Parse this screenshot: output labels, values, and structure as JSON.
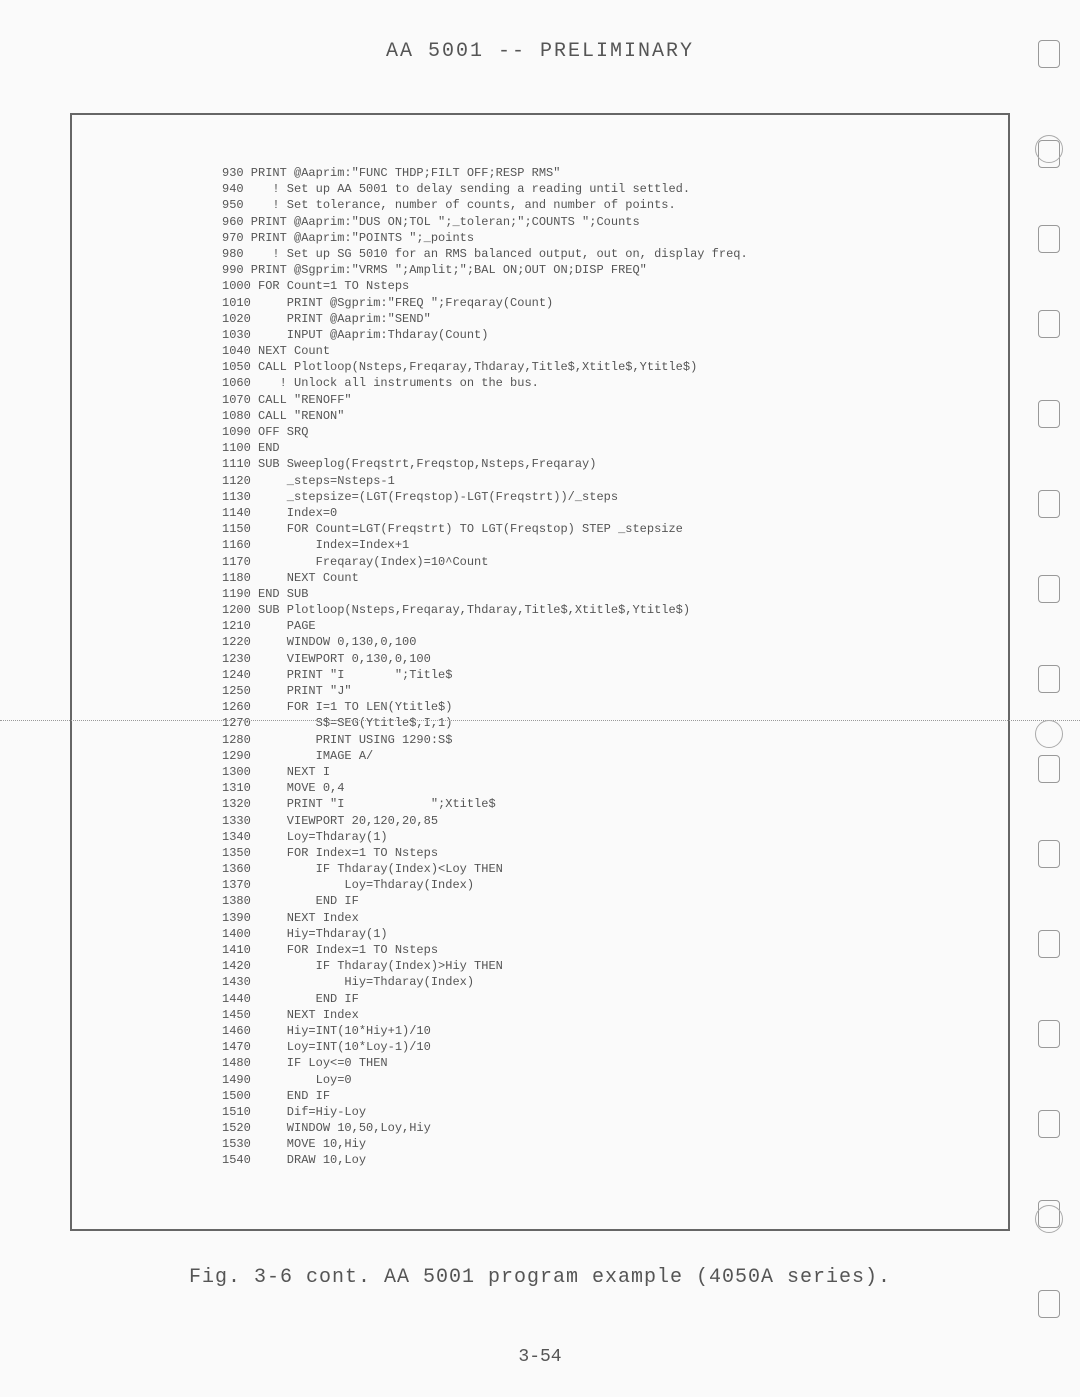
{
  "header": "AA 5001 -- PRELIMINARY",
  "caption": "Fig. 3-6 cont.  AA 5001 program example (4050A series).",
  "pageNumber": "3-54",
  "code": {
    "lines": [
      "930 PRINT @Aaprim:\"FUNC THDP;FILT OFF;RESP RMS\"",
      "940    ! Set up AA 5001 to delay sending a reading until settled.",
      "950    ! Set tolerance, number of counts, and number of points.",
      "960 PRINT @Aaprim:\"DUS ON;TOL \";_toleran;\";COUNTS \";Counts",
      "970 PRINT @Aaprim:\"POINTS \";_points",
      "980    ! Set up SG 5010 for an RMS balanced output, out on, display freq.",
      "990 PRINT @Sgprim:\"VRMS \";Amplit;\";BAL ON;OUT ON;DISP FREQ\"",
      "1000 FOR Count=1 TO Nsteps",
      "1010     PRINT @Sgprim:\"FREQ \";Freqaray(Count)",
      "1020     PRINT @Aaprim:\"SEND\"",
      "1030     INPUT @Aaprim:Thdaray(Count)",
      "1040 NEXT Count",
      "1050 CALL Plotloop(Nsteps,Freqaray,Thdaray,Title$,Xtitle$,Ytitle$)",
      "1060    ! Unlock all instruments on the bus.",
      "1070 CALL \"RENOFF\"",
      "1080 CALL \"RENON\"",
      "1090 OFF SRQ",
      "1100 END",
      "1110 SUB Sweeplog(Freqstrt,Freqstop,Nsteps,Freqaray)",
      "1120     _steps=Nsteps-1",
      "1130     _stepsize=(LGT(Freqstop)-LGT(Freqstrt))/_steps",
      "1140     Index=0",
      "1150     FOR Count=LGT(Freqstrt) TO LGT(Freqstop) STEP _stepsize",
      "1160         Index=Index+1",
      "1170         Freqaray(Index)=10^Count",
      "1180     NEXT Count",
      "1190 END SUB",
      "1200 SUB Plotloop(Nsteps,Freqaray,Thdaray,Title$,Xtitle$,Ytitle$)",
      "1210     PAGE",
      "1220     WINDOW 0,130,0,100",
      "1230     VIEWPORT 0,130,0,100",
      "1240     PRINT \"I       \";Title$",
      "1250     PRINT \"J\"",
      "1260     FOR I=1 TO LEN(Ytitle$)",
      "1270         S$=SEG(Ytitle$,I,1)",
      "1280         PRINT USING 1290:S$",
      "1290         IMAGE A/",
      "1300     NEXT I",
      "1310     MOVE 0,4",
      "1320     PRINT \"I            \";Xtitle$",
      "1330     VIEWPORT 20,120,20,85",
      "1340     Loy=Thdaray(1)",
      "1350     FOR Index=1 TO Nsteps",
      "1360         IF Thdaray(Index)<Loy THEN",
      "1370             Loy=Thdaray(Index)",
      "1380         END IF",
      "1390     NEXT Index",
      "1400     Hiy=Thdaray(1)",
      "1410     FOR Index=1 TO Nsteps",
      "1420         IF Thdaray(Index)>Hiy THEN",
      "1430             Hiy=Thdaray(Index)",
      "1440         END IF",
      "1450     NEXT Index",
      "1460     Hiy=INT(10*Hiy+1)/10",
      "1470     Loy=INT(10*Loy-1)/10",
      "1480     IF Loy<=0 THEN",
      "1490         Loy=0",
      "1500     END IF",
      "1510     Dif=Hiy-Loy",
      "1520     WINDOW 10,50,Loy,Hiy",
      "1530     MOVE 10,Hiy",
      "1540     DRAW 10,Loy"
    ]
  },
  "punchHoles": {
    "positions": [
      40,
      140,
      225,
      310,
      400,
      490,
      575,
      665,
      755,
      840,
      930,
      1020,
      1110,
      1200,
      1290
    ],
    "ringPositions": [
      135,
      720,
      1205
    ]
  },
  "style": {
    "background": "#fafafa",
    "textColor": "#555555",
    "borderColor": "#666666",
    "codeFont": "Courier New",
    "codeFontSize": 12,
    "headerFontSize": 20
  }
}
